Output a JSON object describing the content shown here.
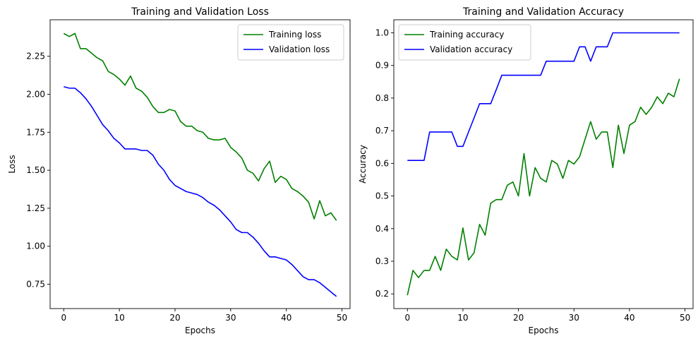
{
  "chart_data": [
    {
      "type": "line",
      "title": "Training and Validation Loss",
      "xlabel": "Epochs",
      "ylabel": "Loss",
      "xlim": [
        -2.45,
        51.45
      ],
      "ylim": [
        0.59,
        2.49
      ],
      "xticks": [
        0,
        10,
        20,
        30,
        40,
        50
      ],
      "yticks": [
        0.75,
        1.0,
        1.25,
        1.5,
        1.75,
        2.0,
        2.25
      ],
      "ytick_labels": [
        "0.75",
        "1.00",
        "1.25",
        "1.50",
        "1.75",
        "2.00",
        "2.25"
      ],
      "grid": false,
      "legend_position": "top-right",
      "x": [
        0,
        1,
        2,
        3,
        4,
        5,
        6,
        7,
        8,
        9,
        10,
        11,
        12,
        13,
        14,
        15,
        16,
        17,
        18,
        19,
        20,
        21,
        22,
        23,
        24,
        25,
        26,
        27,
        28,
        29,
        30,
        31,
        32,
        33,
        34,
        35,
        36,
        37,
        38,
        39,
        40,
        41,
        42,
        43,
        44,
        45,
        46,
        47,
        48,
        49
      ],
      "series": [
        {
          "name": "Training loss",
          "color": "#008000",
          "values": [
            2.4,
            2.38,
            2.4,
            2.3,
            2.3,
            2.27,
            2.24,
            2.22,
            2.15,
            2.13,
            2.1,
            2.06,
            2.12,
            2.04,
            2.02,
            1.98,
            1.92,
            1.88,
            1.88,
            1.9,
            1.89,
            1.82,
            1.79,
            1.79,
            1.76,
            1.75,
            1.71,
            1.7,
            1.7,
            1.71,
            1.65,
            1.62,
            1.58,
            1.5,
            1.48,
            1.43,
            1.51,
            1.56,
            1.42,
            1.46,
            1.44,
            1.38,
            1.36,
            1.33,
            1.29,
            1.18,
            1.3,
            1.2,
            1.22,
            1.17
          ]
        },
        {
          "name": "Validation loss",
          "color": "#0000ff",
          "values": [
            2.05,
            2.04,
            2.04,
            2.01,
            1.97,
            1.92,
            1.86,
            1.8,
            1.76,
            1.71,
            1.68,
            1.64,
            1.64,
            1.64,
            1.63,
            1.63,
            1.6,
            1.54,
            1.5,
            1.44,
            1.4,
            1.38,
            1.36,
            1.35,
            1.34,
            1.32,
            1.29,
            1.27,
            1.24,
            1.2,
            1.16,
            1.11,
            1.09,
            1.09,
            1.06,
            1.02,
            0.97,
            0.93,
            0.93,
            0.92,
            0.91,
            0.88,
            0.84,
            0.8,
            0.78,
            0.78,
            0.76,
            0.73,
            0.7,
            0.67
          ]
        }
      ]
    },
    {
      "type": "line",
      "title": "Training and Validation Accuracy",
      "xlabel": "Epochs",
      "ylabel": "Accuracy",
      "xlim": [
        -2.45,
        51.45
      ],
      "ylim": [
        0.155,
        1.04
      ],
      "xticks": [
        0,
        10,
        20,
        30,
        40,
        50
      ],
      "yticks": [
        0.2,
        0.3,
        0.4,
        0.5,
        0.6,
        0.7,
        0.8,
        0.9,
        1.0
      ],
      "ytick_labels": [
        "0.2",
        "0.3",
        "0.4",
        "0.5",
        "0.6",
        "0.7",
        "0.8",
        "0.9",
        "1.0"
      ],
      "grid": false,
      "legend_position": "top-left",
      "x": [
        0,
        1,
        2,
        3,
        4,
        5,
        6,
        7,
        8,
        9,
        10,
        11,
        12,
        13,
        14,
        15,
        16,
        17,
        18,
        19,
        20,
        21,
        22,
        23,
        24,
        25,
        26,
        27,
        28,
        29,
        30,
        31,
        32,
        33,
        34,
        35,
        36,
        37,
        38,
        39,
        40,
        41,
        42,
        43,
        44,
        45,
        46,
        47,
        48,
        49
      ],
      "series": [
        {
          "name": "Training accuracy",
          "color": "#008000",
          "values": [
            0.196,
            0.272,
            0.25,
            0.272,
            0.272,
            0.315,
            0.272,
            0.337,
            0.315,
            0.304,
            0.402,
            0.304,
            0.326,
            0.413,
            0.38,
            0.478,
            0.489,
            0.489,
            0.533,
            0.543,
            0.5,
            0.63,
            0.5,
            0.587,
            0.554,
            0.543,
            0.609,
            0.598,
            0.554,
            0.609,
            0.598,
            0.62,
            0.674,
            0.728,
            0.674,
            0.696,
            0.696,
            0.587,
            0.717,
            0.63,
            0.717,
            0.728,
            0.772,
            0.75,
            0.772,
            0.804,
            0.783,
            0.815,
            0.804,
            0.859
          ]
        },
        {
          "name": "Validation accuracy",
          "color": "#0000ff",
          "values": [
            0.609,
            0.609,
            0.609,
            0.609,
            0.696,
            0.696,
            0.696,
            0.696,
            0.696,
            0.652,
            0.652,
            0.696,
            0.739,
            0.783,
            0.783,
            0.783,
            0.826,
            0.87,
            0.87,
            0.87,
            0.87,
            0.87,
            0.87,
            0.87,
            0.87,
            0.913,
            0.913,
            0.913,
            0.913,
            0.913,
            0.913,
            0.957,
            0.957,
            0.913,
            0.957,
            0.957,
            0.957,
            1.0,
            1.0,
            1.0,
            1.0,
            1.0,
            1.0,
            1.0,
            1.0,
            1.0,
            1.0,
            1.0,
            1.0,
            1.0
          ]
        }
      ]
    }
  ]
}
